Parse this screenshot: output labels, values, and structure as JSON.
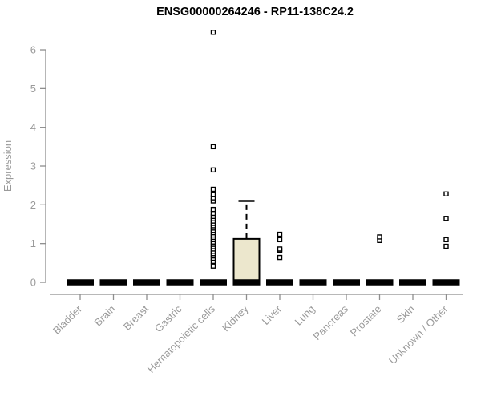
{
  "title": "ENSG00000264246 - RP11-138C24.2",
  "colors": {
    "background": "#ffffff",
    "title": "#000000",
    "axis_line": "#8e8e8e",
    "tick_label": "#9a9a9a",
    "axis_label": "#9a9a9a",
    "box_fill": "#ece7cd",
    "box_stroke": "#000000",
    "outlier_stroke": "#000000",
    "outlier_fill": "#ffffff"
  },
  "chart_data": {
    "type": "boxplot",
    "title": "ENSG00000264246 - RP11-138C24.2",
    "xlabel": "",
    "ylabel": "Expression",
    "ylim": [
      0,
      6
    ],
    "yticks": [
      0,
      1,
      2,
      3,
      4,
      5,
      6
    ],
    "grid": false,
    "legend": "none",
    "categories": [
      "Bladder",
      "Brain",
      "Breast",
      "Gastric",
      "Hematopoietic cells",
      "Kidney",
      "Liver",
      "Lung",
      "Pancreas",
      "Prostate",
      "Skin",
      "Unknown / Other"
    ],
    "boxes": [
      {
        "category": "Bladder",
        "low": 0,
        "q1": 0,
        "median": 0,
        "q3": 0,
        "high": 0,
        "outliers": []
      },
      {
        "category": "Brain",
        "low": 0,
        "q1": 0,
        "median": 0,
        "q3": 0,
        "high": 0,
        "outliers": []
      },
      {
        "category": "Breast",
        "low": 0,
        "q1": 0,
        "median": 0,
        "q3": 0,
        "high": 0,
        "outliers": []
      },
      {
        "category": "Gastric",
        "low": 0,
        "q1": 0,
        "median": 0,
        "q3": 0,
        "high": 0,
        "outliers": []
      },
      {
        "category": "Hematopoietic cells",
        "low": 0,
        "q1": 0,
        "median": 0,
        "q3": 0,
        "high": 0,
        "outliers": [
          0.42,
          0.54,
          0.62,
          0.68,
          0.74,
          0.8,
          0.86,
          0.92,
          0.98,
          1.04,
          1.1,
          1.16,
          1.22,
          1.28,
          1.34,
          1.4,
          1.46,
          1.52,
          1.58,
          1.64,
          1.7,
          1.78,
          1.88,
          2.1,
          2.18,
          2.26,
          2.4,
          2.9,
          3.5,
          6.45
        ]
      },
      {
        "category": "Kidney",
        "low": 0,
        "q1": 0,
        "median": 0,
        "q3": 1.12,
        "high": 2.1,
        "outliers": []
      },
      {
        "category": "Liver",
        "low": 0,
        "q1": 0,
        "median": 0,
        "q3": 0,
        "high": 0,
        "outliers": [
          0.64,
          0.83,
          0.86,
          1.1,
          1.24
        ]
      },
      {
        "category": "Lung",
        "low": 0,
        "q1": 0,
        "median": 0,
        "q3": 0,
        "high": 0,
        "outliers": []
      },
      {
        "category": "Pancreas",
        "low": 0,
        "q1": 0,
        "median": 0,
        "q3": 0,
        "high": 0,
        "outliers": []
      },
      {
        "category": "Prostate",
        "low": 0,
        "q1": 0,
        "median": 0,
        "q3": 0,
        "high": 0,
        "outliers": [
          1.08,
          1.17
        ]
      },
      {
        "category": "Skin",
        "low": 0,
        "q1": 0,
        "median": 0,
        "q3": 0,
        "high": 0,
        "outliers": []
      },
      {
        "category": "Unknown / Other",
        "low": 0,
        "q1": 0,
        "median": 0,
        "q3": 0,
        "high": 0,
        "outliers": [
          0.93,
          1.1,
          1.65,
          2.28
        ]
      }
    ]
  }
}
